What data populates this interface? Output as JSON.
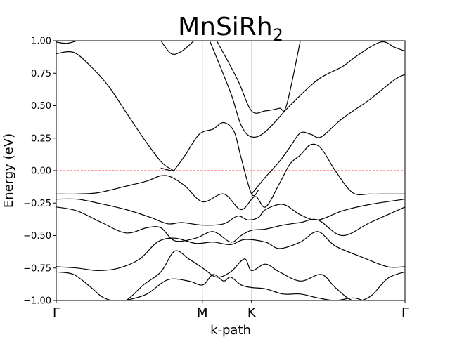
{
  "chart_data": {
    "type": "line",
    "title_main": "MnSiRh",
    "title_sub": "2",
    "xlabel": "k-path",
    "ylabel": "Energy (eV)",
    "ylim": [
      -1.0,
      1.0
    ],
    "yticks": [
      "1.00",
      "0.75",
      "0.50",
      "0.25",
      "0.00",
      "−0.25",
      "−0.50",
      "−0.75",
      "−1.00"
    ],
    "ytick_values": [
      1.0,
      0.75,
      0.5,
      0.25,
      0.0,
      -0.25,
      -0.5,
      -0.75,
      -1.0
    ],
    "xlim": [
      0,
      1
    ],
    "kpoints": [
      {
        "label": "Γ",
        "x": 0.0
      },
      {
        "label": "M",
        "x": 0.419
      },
      {
        "label": "K",
        "x": 0.56
      },
      {
        "label": "Γ",
        "x": 1.0
      }
    ],
    "fermi_level": 0.0,
    "fermi_color": "#ff0000",
    "band_color": "#000000",
    "series": [
      {
        "x": [
          0.0,
          0.03,
          0.06
        ],
        "y": [
          0.99,
          0.98,
          1.0
        ]
      },
      {
        "x": [
          0.3,
          0.33,
          0.36,
          0.395
        ],
        "y": [
          1.0,
          0.9,
          0.92,
          1.0
        ]
      },
      {
        "x": [
          0.46,
          0.52,
          0.56,
          0.6,
          0.64,
          0.66,
          0.7
        ],
        "y": [
          1.0,
          0.7,
          0.46,
          0.46,
          0.48,
          0.5,
          1.0
        ]
      },
      {
        "x": [
          0.44,
          0.5,
          0.53,
          0.56,
          0.6,
          0.67,
          0.75,
          0.82,
          0.86,
          0.93,
          0.97,
          1.0
        ],
        "y": [
          1.0,
          0.6,
          0.35,
          0.26,
          0.3,
          0.5,
          0.7,
          0.8,
          0.88,
          0.99,
          0.95,
          0.92
        ]
      },
      {
        "x": [
          0.0,
          0.05,
          0.1,
          0.15,
          0.2,
          0.25,
          0.3,
          0.33,
          0.34
        ],
        "y": [
          0.9,
          0.91,
          0.8,
          0.65,
          0.45,
          0.25,
          0.07,
          0.01,
          0.0
        ]
      },
      {
        "x": [
          0.3,
          0.33,
          0.34,
          0.37,
          0.41,
          0.45,
          0.48,
          0.51,
          0.53,
          0.56,
          0.58
        ],
        "y": [
          0.02,
          0.0,
          0.01,
          0.12,
          0.28,
          0.32,
          0.37,
          0.3,
          0.1,
          -0.18,
          -0.15
        ]
      },
      {
        "x": [
          0.56,
          0.6,
          0.64,
          0.67,
          0.7,
          0.73,
          0.76,
          0.82,
          0.9,
          0.97,
          1.0
        ],
        "y": [
          -0.18,
          -0.05,
          0.07,
          0.18,
          0.29,
          0.28,
          0.26,
          0.4,
          0.55,
          0.7,
          0.74
        ]
      },
      {
        "x": [
          0.0,
          0.06,
          0.12,
          0.2,
          0.26,
          0.3,
          0.33,
          0.37,
          0.42,
          0.48,
          0.53,
          0.57,
          0.6,
          0.64,
          0.67,
          0.7,
          0.73,
          0.76,
          0.8,
          0.85,
          0.9,
          0.95,
          1.0
        ],
        "y": [
          -0.18,
          -0.18,
          -0.17,
          -0.12,
          -0.08,
          -0.04,
          -0.05,
          -0.12,
          -0.24,
          -0.18,
          -0.3,
          -0.2,
          -0.28,
          -0.1,
          0.05,
          0.12,
          0.2,
          0.17,
          0.0,
          -0.17,
          -0.18,
          -0.18,
          -0.18
        ]
      },
      {
        "x": [
          0.0,
          0.06,
          0.12,
          0.2,
          0.27,
          0.32,
          0.36,
          0.42,
          0.48,
          0.52,
          0.55,
          0.58,
          0.6,
          0.65,
          0.7,
          0.75,
          0.82,
          0.9,
          1.0
        ],
        "y": [
          -0.22,
          -0.22,
          -0.25,
          -0.3,
          -0.36,
          -0.41,
          -0.4,
          -0.42,
          -0.41,
          -0.35,
          -0.38,
          -0.36,
          -0.3,
          -0.26,
          -0.34,
          -0.38,
          -0.31,
          -0.26,
          -0.22
        ]
      },
      {
        "x": [
          0.0,
          0.06,
          0.13,
          0.2,
          0.26,
          0.3,
          0.34,
          0.4,
          0.45,
          0.5,
          0.53,
          0.56,
          0.6,
          0.65,
          0.7,
          0.75,
          0.82,
          0.9,
          1.0
        ],
        "y": [
          -0.28,
          -0.31,
          -0.4,
          -0.48,
          -0.44,
          -0.44,
          -0.54,
          -0.52,
          -0.47,
          -0.55,
          -0.5,
          -0.46,
          -0.45,
          -0.42,
          -0.4,
          -0.38,
          -0.5,
          -0.4,
          -0.28
        ]
      },
      {
        "x": [
          0.0,
          0.06,
          0.12,
          0.18,
          0.24,
          0.29,
          0.34,
          0.4,
          0.45,
          0.5,
          0.54,
          0.6,
          0.64,
          0.7,
          0.75,
          0.8,
          0.88,
          0.95,
          1.0
        ],
        "y": [
          -0.74,
          -0.75,
          -0.77,
          -0.75,
          -0.68,
          -0.55,
          -0.52,
          -0.56,
          -0.55,
          -0.57,
          -0.53,
          -0.55,
          -0.6,
          -0.55,
          -0.47,
          -0.58,
          -0.67,
          -0.74,
          -0.74
        ]
      },
      {
        "x": [
          0.0,
          0.05,
          0.1,
          0.13,
          0.16,
          0.2,
          0.25,
          0.3,
          0.34,
          0.38,
          0.42,
          0.46,
          0.5,
          0.54,
          0.56,
          0.6,
          0.64,
          0.7,
          0.76,
          0.8,
          0.85,
          0.9,
          0.95,
          1.0
        ],
        "y": [
          -0.78,
          -0.8,
          -0.9,
          -0.97,
          -1.0,
          -1.0,
          -0.88,
          -0.78,
          -0.62,
          -0.68,
          -0.75,
          -0.82,
          -0.78,
          -0.68,
          -0.77,
          -0.72,
          -0.78,
          -0.85,
          -0.8,
          -0.9,
          -1.0,
          -0.97,
          -0.83,
          -0.78
        ]
      },
      {
        "x": [
          0.2,
          0.26,
          0.32,
          0.38,
          0.42,
          0.45,
          0.48,
          0.5,
          0.53,
          0.56,
          0.6,
          0.65,
          0.7,
          0.75,
          0.8,
          0.85,
          0.88
        ],
        "y": [
          -1.0,
          -0.95,
          -0.84,
          -0.85,
          -0.88,
          -0.8,
          -0.85,
          -0.82,
          -0.88,
          -0.9,
          -0.91,
          -0.95,
          -0.95,
          -0.98,
          -1.0,
          -0.98,
          -1.0
        ]
      }
    ]
  }
}
